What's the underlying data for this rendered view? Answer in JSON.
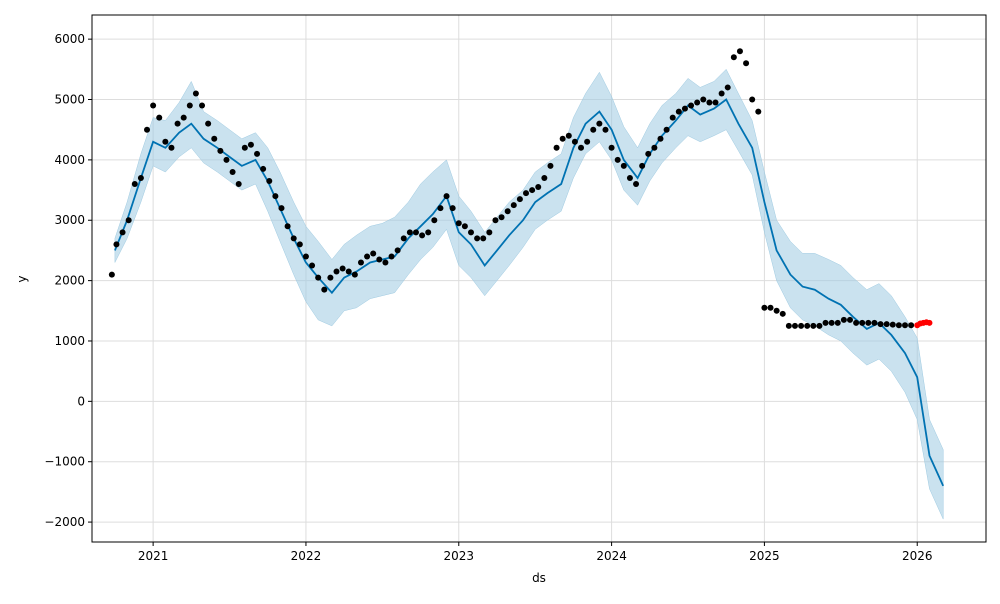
{
  "chart_data": {
    "type": "line",
    "xlabel": "ds",
    "ylabel": "y",
    "xlim": [
      2020.6,
      2026.45
    ],
    "ylim": [
      -2330,
      6400
    ],
    "x_ticks": [
      2021,
      2022,
      2023,
      2024,
      2025,
      2026
    ],
    "x_tick_labels": [
      "2021",
      "2022",
      "2023",
      "2024",
      "2025",
      "2026"
    ],
    "y_ticks": [
      -2000,
      -1000,
      0,
      1000,
      2000,
      3000,
      4000,
      5000,
      6000
    ],
    "y_tick_labels": [
      "−2000",
      "−1000",
      "0",
      "1000",
      "2000",
      "3000",
      "4000",
      "5000",
      "6000"
    ],
    "grid": true,
    "colors": {
      "forecast_line": "#0072b2",
      "uncertainty_band": "#9ecae1",
      "history_points": "#000000",
      "recent_points": "#ff0000",
      "grid": "#dddddd",
      "axis": "#000000"
    },
    "series": [
      {
        "kind": "forecast",
        "x": [
          2020.75,
          2020.83,
          2020.92,
          2021.0,
          2021.08,
          2021.17,
          2021.25,
          2021.33,
          2021.42,
          2021.5,
          2021.58,
          2021.67,
          2021.75,
          2021.83,
          2021.92,
          2022.0,
          2022.08,
          2022.17,
          2022.25,
          2022.33,
          2022.42,
          2022.5,
          2022.58,
          2022.67,
          2022.75,
          2022.83,
          2022.92,
          2023.0,
          2023.08,
          2023.17,
          2023.25,
          2023.33,
          2023.42,
          2023.5,
          2023.58,
          2023.67,
          2023.75,
          2023.83,
          2023.92,
          2024.0,
          2024.08,
          2024.17,
          2024.25,
          2024.33,
          2024.42,
          2024.5,
          2024.58,
          2024.67,
          2024.75,
          2024.83,
          2024.92,
          2025.0,
          2025.08,
          2025.17,
          2025.25,
          2025.33,
          2025.42,
          2025.5,
          2025.58,
          2025.67,
          2025.75,
          2025.83,
          2025.92,
          2026.0,
          2026.08,
          2026.17
        ],
        "y": [
          2500,
          3000,
          3700,
          4300,
          4200,
          4450,
          4600,
          4350,
          4200,
          4050,
          3900,
          4000,
          3650,
          3200,
          2700,
          2300,
          2050,
          1800,
          2050,
          2150,
          2300,
          2350,
          2400,
          2700,
          2900,
          3100,
          3400,
          2800,
          2600,
          2250,
          2500,
          2750,
          3000,
          3300,
          3450,
          3600,
          4200,
          4600,
          4800,
          4500,
          4000,
          3700,
          4100,
          4400,
          4650,
          4900,
          4750,
          4850,
          5000,
          4600,
          4200,
          3300,
          2500,
          2100,
          1900,
          1850,
          1700,
          1600,
          1400,
          1200,
          1300,
          1100,
          800,
          400,
          -900,
          -1400
        ],
        "lower": [
          2300,
          2700,
          3300,
          3900,
          3800,
          4050,
          4200,
          3950,
          3800,
          3650,
          3500,
          3600,
          3150,
          2650,
          2100,
          1650,
          1350,
          1250,
          1500,
          1550,
          1700,
          1750,
          1800,
          2100,
          2350,
          2550,
          2850,
          2250,
          2050,
          1750,
          2000,
          2250,
          2550,
          2850,
          3000,
          3150,
          3700,
          4100,
          4300,
          4000,
          3500,
          3250,
          3650,
          3950,
          4200,
          4400,
          4300,
          4400,
          4500,
          4150,
          3750,
          2800,
          2000,
          1550,
          1350,
          1250,
          1100,
          1000,
          800,
          600,
          700,
          500,
          150,
          -300,
          -1450,
          -1950
        ],
        "upper": [
          2700,
          3300,
          4100,
          4700,
          4650,
          4950,
          5300,
          4800,
          4650,
          4500,
          4350,
          4450,
          4200,
          3800,
          3300,
          2900,
          2650,
          2350,
          2600,
          2750,
          2900,
          2950,
          3050,
          3300,
          3600,
          3800,
          4000,
          3400,
          3150,
          2800,
          3050,
          3300,
          3500,
          3800,
          3950,
          4100,
          4700,
          5100,
          5450,
          5050,
          4550,
          4200,
          4600,
          4900,
          5100,
          5350,
          5200,
          5300,
          5500,
          5100,
          4650,
          3800,
          3000,
          2650,
          2450,
          2450,
          2350,
          2250,
          2050,
          1850,
          1950,
          1750,
          1400,
          1050,
          -300,
          -800
        ]
      },
      {
        "kind": "history",
        "x": [
          2020.73,
          2020.76,
          2020.8,
          2020.84,
          2020.88,
          2020.92,
          2020.96,
          2021.0,
          2021.04,
          2021.08,
          2021.12,
          2021.16,
          2021.2,
          2021.24,
          2021.28,
          2021.32,
          2021.36,
          2021.4,
          2021.44,
          2021.48,
          2021.52,
          2021.56,
          2021.6,
          2021.64,
          2021.68,
          2021.72,
          2021.76,
          2021.8,
          2021.84,
          2021.88,
          2021.92,
          2021.96,
          2022.0,
          2022.04,
          2022.08,
          2022.12,
          2022.16,
          2022.2,
          2022.24,
          2022.28,
          2022.32,
          2022.36,
          2022.4,
          2022.44,
          2022.48,
          2022.52,
          2022.56,
          2022.6,
          2022.64,
          2022.68,
          2022.72,
          2022.76,
          2022.8,
          2022.84,
          2022.88,
          2022.92,
          2022.96,
          2023.0,
          2023.04,
          2023.08,
          2023.12,
          2023.16,
          2023.2,
          2023.24,
          2023.28,
          2023.32,
          2023.36,
          2023.4,
          2023.44,
          2023.48,
          2023.52,
          2023.56,
          2023.6,
          2023.64,
          2023.68,
          2023.72,
          2023.76,
          2023.8,
          2023.84,
          2023.88,
          2023.92,
          2023.96,
          2024.0,
          2024.04,
          2024.08,
          2024.12,
          2024.16,
          2024.2,
          2024.24,
          2024.28,
          2024.32,
          2024.36,
          2024.4,
          2024.44,
          2024.48,
          2024.52,
          2024.56,
          2024.6,
          2024.64,
          2024.68,
          2024.72,
          2024.76,
          2024.8,
          2024.84,
          2024.88,
          2024.92,
          2024.96,
          2025.0,
          2025.04,
          2025.08,
          2025.12,
          2025.16,
          2025.2,
          2025.24,
          2025.28,
          2025.32,
          2025.36,
          2025.4,
          2025.44,
          2025.48,
          2025.52,
          2025.56,
          2025.6,
          2025.64,
          2025.68,
          2025.72,
          2025.76,
          2025.8,
          2025.84,
          2025.88,
          2025.92,
          2025.96
        ],
        "y": [
          2100,
          2600,
          2800,
          3000,
          3600,
          3700,
          4500,
          4900,
          4700,
          4300,
          4200,
          4600,
          4700,
          4900,
          5100,
          4900,
          4600,
          4350,
          4150,
          4000,
          3800,
          3600,
          4200,
          4250,
          4100,
          3850,
          3650,
          3400,
          3200,
          2900,
          2700,
          2600,
          2400,
          2250,
          2050,
          1850,
          2050,
          2150,
          2200,
          2150,
          2100,
          2300,
          2400,
          2450,
          2350,
          2300,
          2400,
          2500,
          2700,
          2800,
          2800,
          2750,
          2800,
          3000,
          3200,
          3400,
          3200,
          2950,
          2900,
          2800,
          2700,
          2700,
          2800,
          3000,
          3050,
          3150,
          3250,
          3350,
          3450,
          3500,
          3550,
          3700,
          3900,
          4200,
          4350,
          4400,
          4300,
          4200,
          4300,
          4500,
          4600,
          4500,
          4200,
          4000,
          3900,
          3700,
          3600,
          3900,
          4100,
          4200,
          4350,
          4500,
          4700,
          4800,
          4850,
          4900,
          4950,
          5000,
          4950,
          4950,
          5100,
          5200,
          5700,
          5800,
          5600,
          5000,
          4800,
          1550,
          1550,
          1500,
          1450,
          1250,
          1250,
          1250,
          1250,
          1250,
          1250,
          1300,
          1300,
          1300,
          1350,
          1350,
          1300,
          1300,
          1300,
          1300,
          1280,
          1280,
          1270,
          1260,
          1260,
          1260
        ]
      },
      {
        "kind": "recent",
        "x": [
          2026.0,
          2026.02,
          2026.04,
          2026.06,
          2026.08
        ],
        "y": [
          1260,
          1290,
          1300,
          1310,
          1300
        ]
      }
    ]
  }
}
